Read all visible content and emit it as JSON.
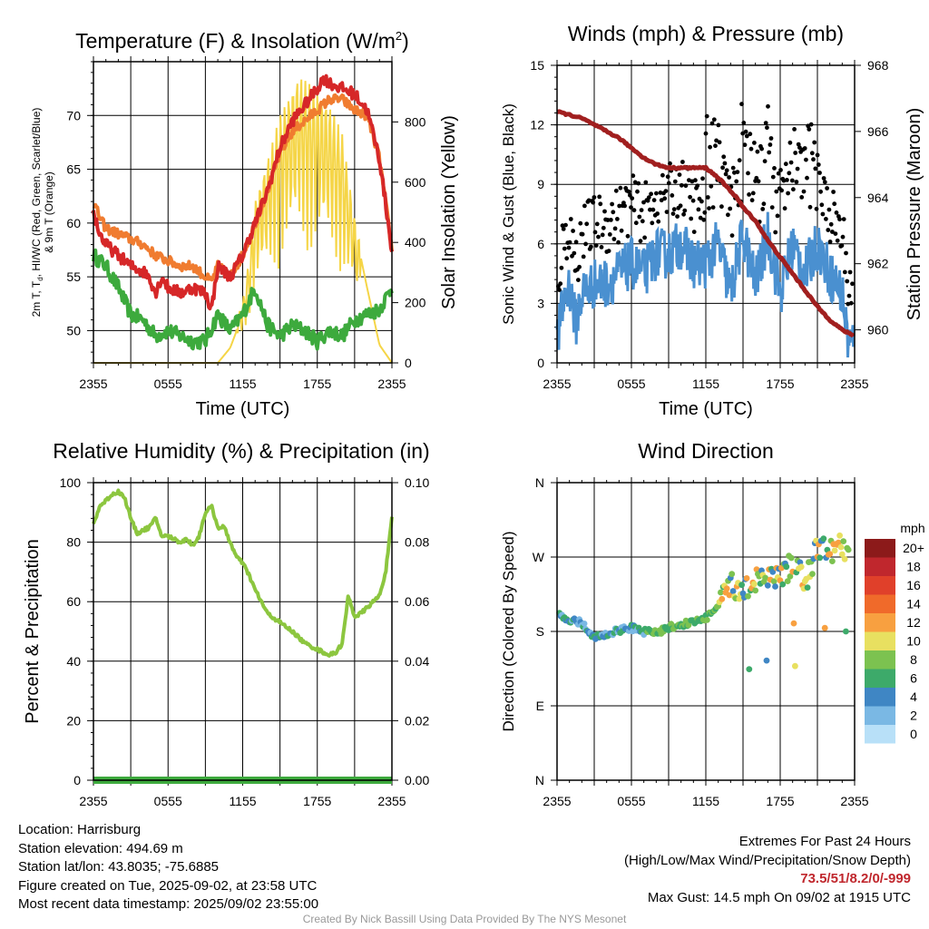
{
  "chart_data": [
    {
      "id": "temp",
      "type": "line",
      "title": "Temperature (F) & Insolation (W/m²)",
      "title_main": "Temperature (F) & Insolation (W/m",
      "title_sup": "2",
      "title_tail": ")",
      "xlabel": "Time (UTC)",
      "ylabel_lines": [
        "2m T, T",
        "d",
        ", HI/WC (Red, Green, Scarlet/Blue)",
        "& 9m T (Orange)"
      ],
      "ylabel_right": "Solar Insolation (Yellow)",
      "xticks": [
        "2355",
        "0555",
        "1155",
        "1755",
        "2355"
      ],
      "x_range_hours": [
        0,
        24
      ],
      "ylim": [
        47,
        75
      ],
      "yticks": [
        50,
        55,
        60,
        65,
        70
      ],
      "ylim_right": [
        0,
        1000
      ],
      "yticks_right": [
        0,
        200,
        400,
        600,
        800
      ],
      "grid": true,
      "series": [
        {
          "color": "#f07c30",
          "axis": "left",
          "x": [
            0,
            0.5,
            1,
            2,
            3,
            4,
            5,
            6,
            7,
            8,
            9,
            9.5,
            10,
            11,
            12,
            13,
            14,
            15,
            16,
            17,
            18,
            18.5,
            19,
            20,
            21,
            22,
            23,
            24
          ],
          "y": [
            62,
            60.5,
            59.5,
            59,
            58.5,
            58,
            57,
            56.5,
            56,
            56,
            55,
            54.5,
            56,
            55,
            57,
            60,
            63,
            66.5,
            68.5,
            69.5,
            70.5,
            71,
            71.5,
            71.5,
            70.5,
            70,
            66,
            57.5
          ]
        },
        {
          "color": "#d62728",
          "axis": "left",
          "x": [
            0,
            0.5,
            1,
            2,
            3,
            4,
            4.5,
            5,
            5.5,
            6,
            7,
            8,
            9,
            9.5,
            10,
            11,
            12,
            13,
            14,
            15,
            16,
            17,
            18,
            18.5,
            19,
            20,
            21,
            22,
            23,
            24
          ],
          "y": [
            61,
            59,
            58,
            57,
            56,
            55.5,
            55,
            53.5,
            55,
            54,
            53.5,
            54,
            53.5,
            52,
            56,
            55,
            57,
            60,
            63,
            67,
            69.5,
            71,
            72.5,
            73.5,
            73,
            72.5,
            72,
            70.5,
            66,
            57.5
          ]
        },
        {
          "color": "#3daa3d",
          "axis": "left",
          "x": [
            0,
            0.5,
            1,
            2,
            3,
            4,
            5,
            6,
            7,
            8,
            9,
            10,
            11,
            12,
            13,
            14,
            15,
            16,
            17,
            18,
            19,
            20,
            21,
            22,
            23,
            24
          ],
          "y": [
            57,
            56.5,
            56,
            54,
            51.5,
            51,
            49.5,
            50,
            49.5,
            49,
            49,
            51.5,
            50,
            51.5,
            54,
            50.5,
            49.5,
            50.5,
            50,
            49,
            50,
            49.5,
            51,
            51.5,
            52,
            54
          ]
        },
        {
          "color": "#f5d547",
          "axis": "right",
          "x": [
            0,
            10,
            11,
            12,
            12.5,
            13,
            14,
            15,
            16,
            16.5,
            17,
            18,
            19,
            20,
            21,
            22,
            23,
            24
          ],
          "y": [
            0,
            0,
            50,
            160,
            300,
            500,
            640,
            780,
            880,
            920,
            900,
            860,
            820,
            720,
            450,
            250,
            60,
            0
          ]
        }
      ]
    },
    {
      "id": "wind",
      "type": "line",
      "title": "Winds (mph) & Pressure (mb)",
      "xlabel": "Time (UTC)",
      "ylabel": "Sonic Wind & Gust (Blue, Black)",
      "ylabel_right": "Station Pressure (Maroon)",
      "xticks": [
        "2355",
        "0555",
        "1155",
        "1755",
        "2355"
      ],
      "x_range_hours": [
        0,
        24
      ],
      "ylim": [
        0,
        15
      ],
      "yticks": [
        0,
        3,
        6,
        9,
        12,
        15
      ],
      "ylim_right": [
        959,
        968
      ],
      "yticks_right": [
        960,
        962,
        964,
        966,
        968
      ],
      "grid": true,
      "series": [
        {
          "color": "#4a90d0",
          "axis": "left",
          "x": [
            0,
            0.5,
            1,
            1.5,
            2,
            3,
            4,
            5,
            6,
            7,
            8,
            9,
            10,
            11,
            12,
            13,
            14,
            15,
            16,
            17,
            18,
            19,
            20,
            21,
            22,
            23,
            23.5,
            24
          ],
          "y": [
            1,
            3,
            4,
            2,
            3.5,
            4,
            4,
            4.5,
            5,
            4.5,
            5.5,
            5.5,
            6,
            5,
            5,
            6,
            3.5,
            6.5,
            4,
            6.5,
            3.5,
            6,
            4.5,
            6,
            4.5,
            3.5,
            1,
            1
          ]
        },
        {
          "color": "#a11f1f",
          "axis": "right",
          "x": [
            0,
            1,
            2,
            3,
            4,
            5,
            6,
            7,
            8,
            9,
            10,
            11,
            12,
            13,
            14,
            14.5,
            15,
            16,
            17,
            18,
            19,
            20,
            21,
            22,
            23,
            24
          ],
          "y": [
            966.6,
            966.5,
            966.4,
            966.2,
            966,
            965.8,
            965.5,
            965.2,
            965,
            964.9,
            964.9,
            964.9,
            964.9,
            964.6,
            964.2,
            964,
            963.7,
            963.3,
            962.7,
            962.2,
            961.7,
            961.2,
            960.7,
            960.3,
            960,
            959.8
          ]
        }
      ]
    },
    {
      "id": "rh",
      "type": "line",
      "title": "Relative Humidity (%) & Precipitation (in)",
      "ylabel": "Percent & Precipitation",
      "xticks": [
        "2355",
        "0555",
        "1155",
        "1755",
        "2355"
      ],
      "x_range_hours": [
        0,
        24
      ],
      "ylim": [
        0,
        100
      ],
      "yticks": [
        0,
        20,
        40,
        60,
        80,
        100
      ],
      "ylim_right": [
        0,
        0.1
      ],
      "yticks_right": [
        "0.00",
        "0.02",
        "0.04",
        "0.06",
        "0.08",
        "0.10"
      ],
      "grid": true,
      "series": [
        {
          "color": "#8cc63f",
          "axis": "left",
          "x": [
            0,
            0.5,
            1,
            1.5,
            2,
            2.5,
            3,
            3.5,
            4,
            4.5,
            5,
            5.5,
            6,
            6.5,
            7,
            7.5,
            8,
            8.5,
            9,
            9.5,
            10,
            10.5,
            11,
            11.5,
            12,
            12.5,
            13,
            13.5,
            14,
            15,
            16,
            17,
            17.5,
            18,
            18.5,
            19,
            19.5,
            20,
            20.5,
            21,
            21.5,
            22,
            22.5,
            23,
            23.5,
            24
          ],
          "y": [
            86,
            92,
            94,
            96,
            97,
            95,
            88,
            83,
            84,
            85,
            88,
            82,
            82,
            81,
            80,
            81,
            79,
            82,
            90,
            92,
            85,
            85,
            80,
            75,
            73,
            69,
            64,
            60,
            56,
            53,
            50,
            46,
            45,
            44,
            43,
            42,
            43,
            46,
            62,
            55,
            56,
            58,
            60,
            62,
            70,
            88
          ]
        },
        {
          "color": "#3daa3d",
          "axis": "right",
          "x": [
            0,
            24
          ],
          "y": [
            0,
            0
          ]
        }
      ]
    },
    {
      "id": "dir",
      "type": "scatter",
      "title": "Wind Direction",
      "ylabel": "Direction (Colored By Speed)",
      "xticks": [
        "2355",
        "0555",
        "1155",
        "1755",
        "2355"
      ],
      "x_range_hours": [
        0,
        24
      ],
      "ylim": [
        0,
        360
      ],
      "yticks": [
        "N",
        "E",
        "S",
        "W",
        "N"
      ],
      "grid": true,
      "legend_title": "mph",
      "legend_labels": [
        "20+",
        "18",
        "16",
        "14",
        "12",
        "10",
        "8",
        "6",
        "4",
        "2",
        "0"
      ],
      "legend_colors": [
        "#8c1a1a",
        "#c0272d",
        "#e0402a",
        "#f06a2a",
        "#f8a040",
        "#e8e060",
        "#7cc250",
        "#3daa6a",
        "#3f86c4",
        "#7ab8e4",
        "#b8e0f8"
      ]
    }
  ],
  "info": {
    "location": "Location: Harrisburg",
    "elevation": "Station elevation: 494.69 m",
    "latlon": "Station lat/lon: 43.8035; -75.6885",
    "created": "Figure created on Tue, 2025-09-02, at 23:58 UTC",
    "recent": "Most recent data timestamp: 2025/09/02 23:55:00"
  },
  "extremes": {
    "title": "Extremes For Past 24 Hours",
    "subtitle": "(High/Low/Max Wind/Precipitation/Snow Depth)",
    "values": "73.5/51/8.2/0/-999",
    "gust": "Max Gust: 14.5 mph On 09/02 at 1915 UTC"
  },
  "credit": "Created By Nick Bassill Using Data Provided By The NYS Mesonet"
}
